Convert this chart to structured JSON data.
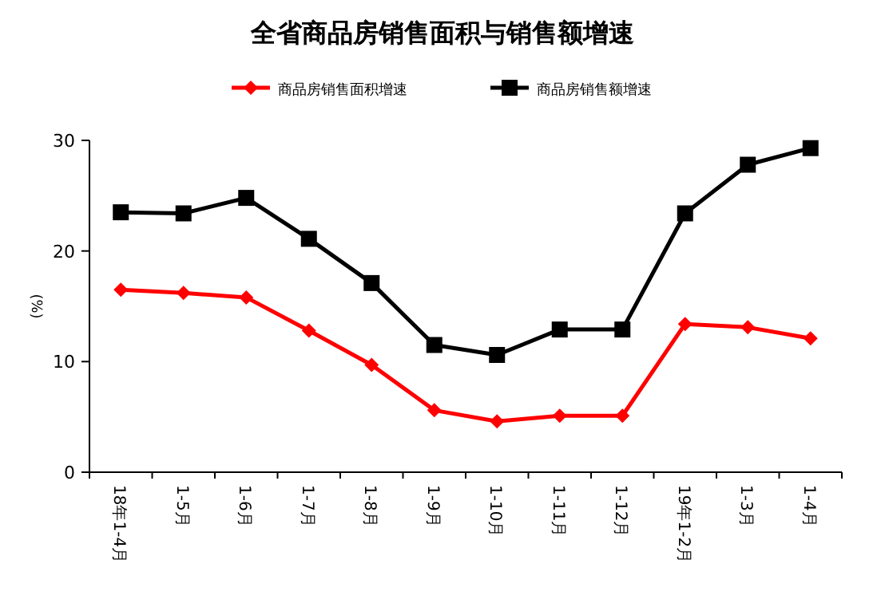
{
  "chart_data": {
    "type": "line",
    "title": "全省商品房销售面积与销售额增速",
    "ylabel": "(%)",
    "categories": [
      "18年1-4月",
      "1-5月",
      "1-6月",
      "1-7月",
      "1-8月",
      "1-9月",
      "1-10月",
      "1-11月",
      "1-12月",
      "19年1-2月",
      "1-3月",
      "1-4月"
    ],
    "series": [
      {
        "name": "商品房销售面积增速",
        "color": "#ff0000",
        "marker": "diamond",
        "values": [
          16.5,
          16.2,
          15.8,
          12.8,
          9.7,
          5.6,
          4.6,
          5.1,
          5.1,
          13.4,
          13.1,
          12.1
        ]
      },
      {
        "name": "商品房销售额增速",
        "color": "#000000",
        "marker": "square",
        "values": [
          23.5,
          23.4,
          24.8,
          21.1,
          17.1,
          11.5,
          10.6,
          12.9,
          12.9,
          23.4,
          27.8,
          29.3
        ]
      }
    ],
    "ylim": [
      0,
      30
    ],
    "yticks": [
      0,
      10,
      20,
      30
    ],
    "legend": "top",
    "grid": false,
    "line_style": "solid"
  }
}
